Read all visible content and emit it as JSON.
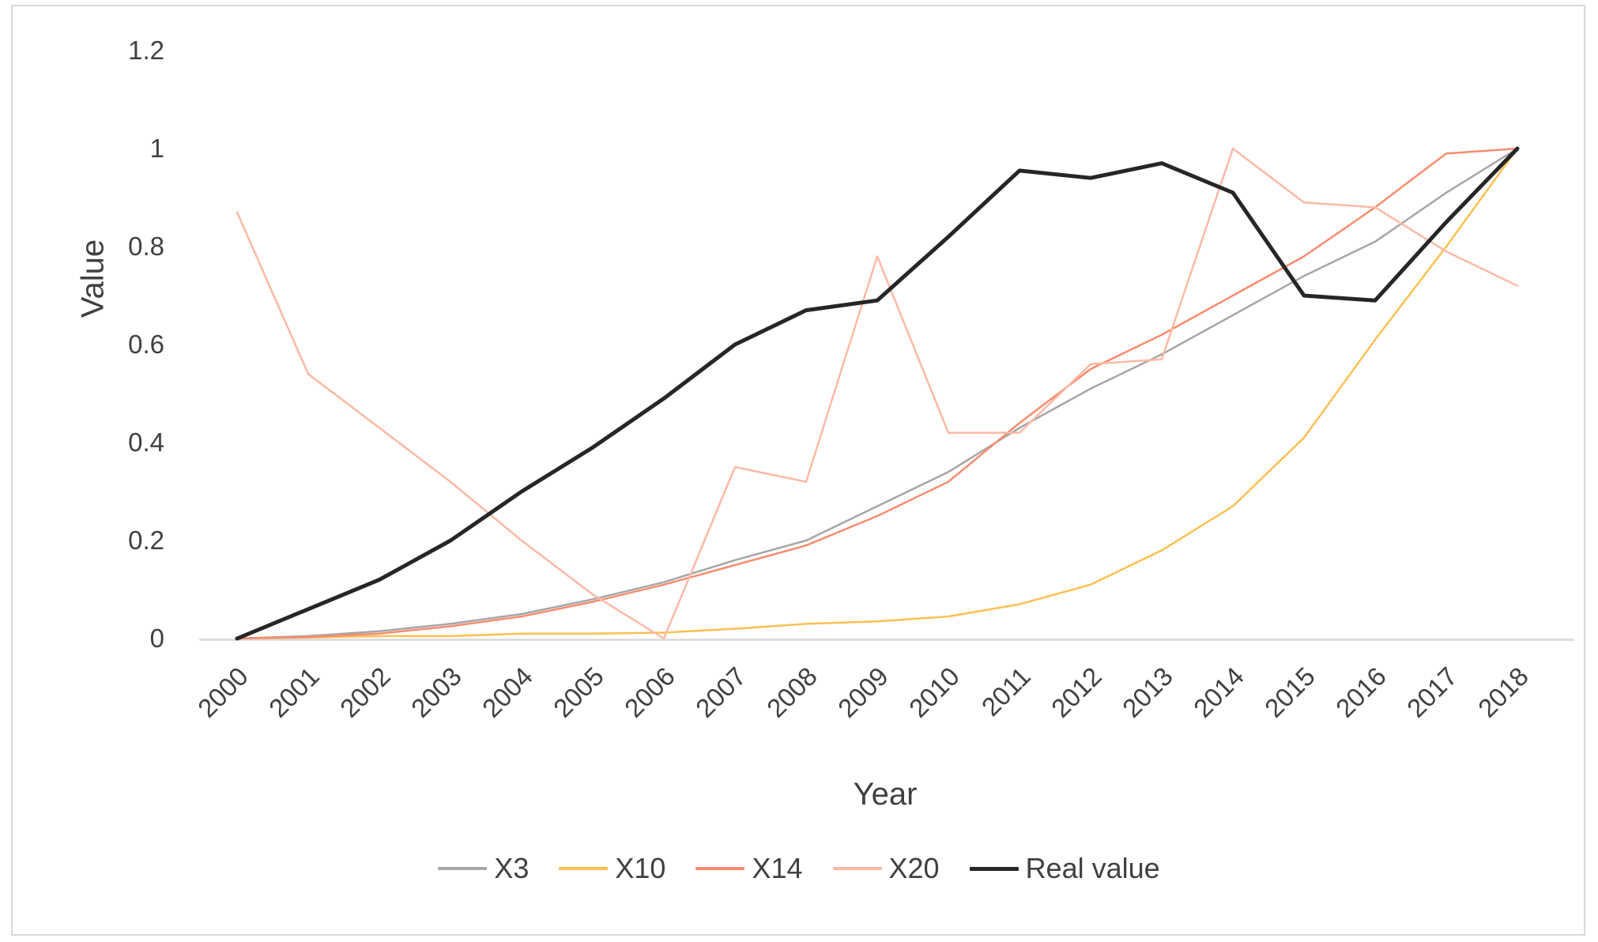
{
  "chart_data": {
    "type": "line",
    "title": "",
    "xlabel": "Year",
    "ylabel": "Value",
    "grid": false,
    "legend_position": "bottom",
    "ylim": [
      0,
      1.2
    ],
    "x_categories": [
      "2000",
      "2001",
      "2002",
      "2003",
      "2004",
      "2005",
      "2006",
      "2007",
      "2008",
      "2009",
      "2010",
      "2011",
      "2012",
      "2013",
      "2014",
      "2015",
      "2016",
      "2017",
      "2018"
    ],
    "y_ticks": [
      {
        "label": "0",
        "value": 0
      },
      {
        "label": "0.2",
        "value": 0.2
      },
      {
        "label": "0.4",
        "value": 0.4
      },
      {
        "label": "0.6",
        "value": 0.6
      },
      {
        "label": "0.8",
        "value": 0.8
      },
      {
        "label": "1",
        "value": 1
      },
      {
        "label": "1.2",
        "value": 1.2
      }
    ],
    "series": [
      {
        "name": "X3",
        "color": "#A6A6A6",
        "width": 2.5,
        "values": [
          0,
          0.005,
          0.015,
          0.03,
          0.05,
          0.08,
          0.115,
          0.16,
          0.2,
          0.27,
          0.34,
          0.43,
          0.51,
          0.58,
          0.66,
          0.74,
          0.81,
          0.91,
          1.0
        ]
      },
      {
        "name": "X10",
        "color": "#FCC052",
        "width": 2.5,
        "values": [
          0,
          0.002,
          0.005,
          0.005,
          0.01,
          0.01,
          0.012,
          0.02,
          0.03,
          0.035,
          0.045,
          0.07,
          0.11,
          0.18,
          0.27,
          0.41,
          0.61,
          0.8,
          1.0
        ]
      },
      {
        "name": "X14",
        "color": "#F98C6F",
        "width": 2.5,
        "values": [
          0,
          0.003,
          0.01,
          0.025,
          0.045,
          0.075,
          0.11,
          0.15,
          0.19,
          0.25,
          0.32,
          0.44,
          0.55,
          0.62,
          0.7,
          0.78,
          0.88,
          0.99,
          1.0
        ]
      },
      {
        "name": "X20",
        "color": "#FBB9A5",
        "width": 2.5,
        "values": [
          0.87,
          0.54,
          0.43,
          0.32,
          0.2,
          0.09,
          0.0,
          0.35,
          0.32,
          0.78,
          0.42,
          0.42,
          0.56,
          0.57,
          1.0,
          0.89,
          0.88,
          0.79,
          0.72
        ]
      },
      {
        "name": "Real value",
        "color": "#262626",
        "width": 5,
        "values": [
          0,
          0.06,
          0.12,
          0.2,
          0.3,
          0.39,
          0.49,
          0.6,
          0.67,
          0.69,
          0.82,
          0.955,
          0.94,
          0.97,
          0.91,
          0.7,
          0.69,
          0.85,
          1.0
        ]
      }
    ],
    "axis_color": "#D9D9D9",
    "text_color": "#404040"
  }
}
